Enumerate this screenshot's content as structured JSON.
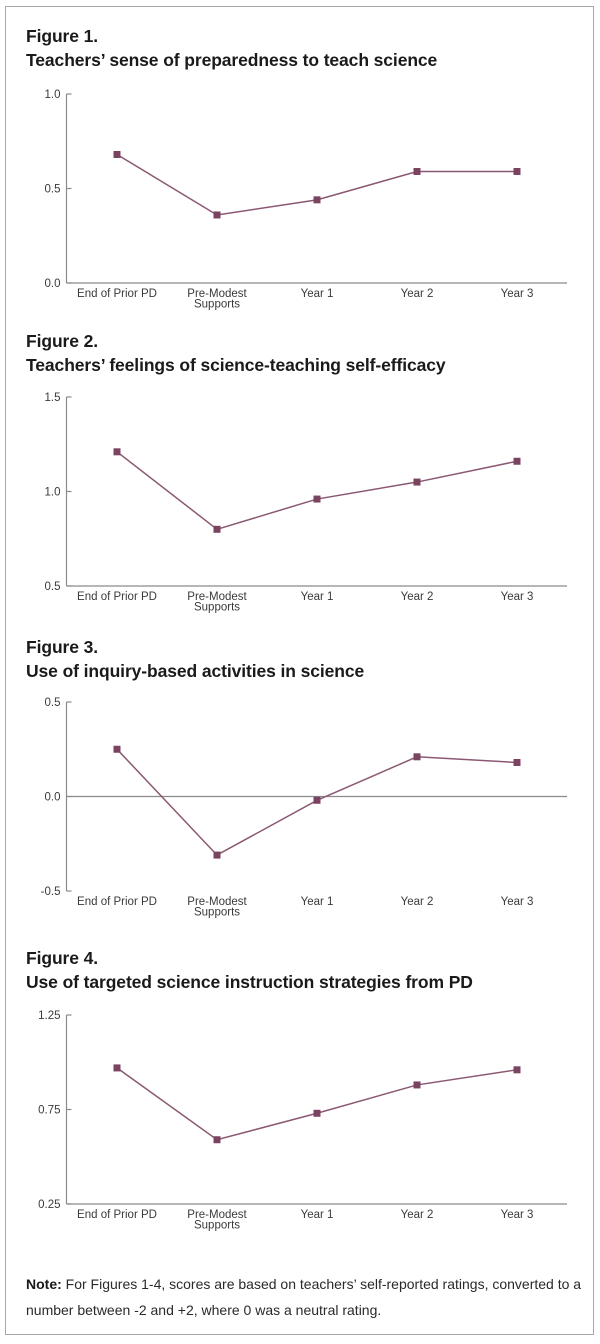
{
  "colors": {
    "series": "#8a5872",
    "marker": "#7a4460",
    "axis": "#8a8a8a",
    "title": "#1a1a1a",
    "border": "#a8a8a8"
  },
  "chart_data": [
    {
      "type": "line",
      "figure_label": "Figure 1.",
      "title": "Teachers’ sense of preparedness to teach science",
      "categories": [
        "End of Prior PD",
        "Pre-Modest Supports",
        "Year 1",
        "Year 2",
        "Year 3"
      ],
      "category_lines": [
        [
          "End of Prior PD"
        ],
        [
          "Pre-Modest",
          "Supports"
        ],
        [
          "Year 1"
        ],
        [
          "Year 2"
        ],
        [
          "Year 3"
        ]
      ],
      "values": [
        0.68,
        0.36,
        0.44,
        0.59,
        0.59
      ],
      "ylim": [
        0.0,
        1.0
      ],
      "yticks": [
        0.0,
        0.5,
        1.0
      ],
      "ytick_labels": [
        "0.0",
        "0.5",
        "1.0"
      ],
      "baseline": 0.0,
      "xlabel": "",
      "ylabel": "",
      "grid": false,
      "legend": "none",
      "marker": "square"
    },
    {
      "type": "line",
      "figure_label": "Figure 2.",
      "title": "Teachers’ feelings of science-teaching self-efficacy",
      "categories": [
        "End of Prior PD",
        "Pre-Modest Supports",
        "Year 1",
        "Year 2",
        "Year 3"
      ],
      "category_lines": [
        [
          "End of Prior PD"
        ],
        [
          "Pre-Modest",
          "Supports"
        ],
        [
          "Year 1"
        ],
        [
          "Year 2"
        ],
        [
          "Year 3"
        ]
      ],
      "values": [
        1.21,
        0.8,
        0.96,
        1.05,
        1.16
      ],
      "ylim": [
        0.5,
        1.5
      ],
      "yticks": [
        0.5,
        1.0,
        1.5
      ],
      "ytick_labels": [
        "0.5",
        "1.0",
        "1.5"
      ],
      "baseline": 0.5,
      "xlabel": "",
      "ylabel": "",
      "grid": false,
      "legend": "none",
      "marker": "square"
    },
    {
      "type": "line",
      "figure_label": "Figure 3.",
      "title": "Use of inquiry-based activities in science",
      "categories": [
        "End of Prior PD",
        "Pre-Modest Supports",
        "Year 1",
        "Year 2",
        "Year 3"
      ],
      "category_lines": [
        [
          "End of Prior PD"
        ],
        [
          "Pre-Modest",
          "Supports"
        ],
        [
          "Year 1"
        ],
        [
          "Year 2"
        ],
        [
          "Year 3"
        ]
      ],
      "values": [
        0.25,
        -0.31,
        -0.02,
        0.21,
        0.18
      ],
      "ylim": [
        -0.5,
        0.5
      ],
      "yticks": [
        -0.5,
        0.0,
        0.5
      ],
      "ytick_labels": [
        "-0.5",
        "0.0",
        "0.5"
      ],
      "baseline": 0.0,
      "xlabel": "",
      "ylabel": "",
      "grid": false,
      "legend": "none",
      "marker": "square"
    },
    {
      "type": "line",
      "figure_label": "Figure 4.",
      "title": "Use of targeted science instruction strategies from PD",
      "categories": [
        "End of Prior PD",
        "Pre-Modest Supports",
        "Year 1",
        "Year 2",
        "Year 3"
      ],
      "category_lines": [
        [
          "End of Prior PD"
        ],
        [
          "Pre-Modest",
          "Supports"
        ],
        [
          "Year 1"
        ],
        [
          "Year 2"
        ],
        [
          "Year 3"
        ]
      ],
      "values": [
        0.97,
        0.59,
        0.73,
        0.88,
        0.96
      ],
      "ylim": [
        0.25,
        1.25
      ],
      "yticks": [
        0.25,
        0.75,
        1.25
      ],
      "ytick_labels": [
        "0.25",
        "0.75",
        "1.25"
      ],
      "baseline": 0.25,
      "xlabel": "",
      "ylabel": "",
      "grid": false,
      "legend": "none",
      "marker": "square"
    }
  ],
  "note": {
    "label": "Note:",
    "text": " For Figures 1-4, scores are based on teachers’ self-reported ratings, converted to a number between -2 and +2, where 0 was a neutral rating."
  }
}
